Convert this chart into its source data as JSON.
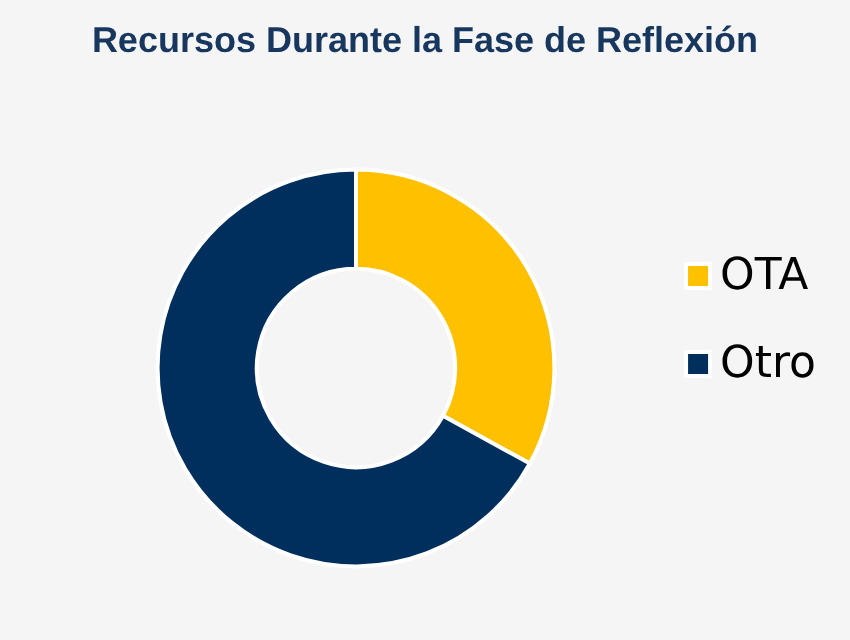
{
  "chart_data": {
    "type": "donut",
    "title": "Recursos Durante la Fase de Reflexión",
    "categories": [
      "OTA",
      "Otro"
    ],
    "values": [
      33,
      67
    ],
    "colors": [
      "#ffc000",
      "#002f5d"
    ],
    "legend": "right"
  }
}
